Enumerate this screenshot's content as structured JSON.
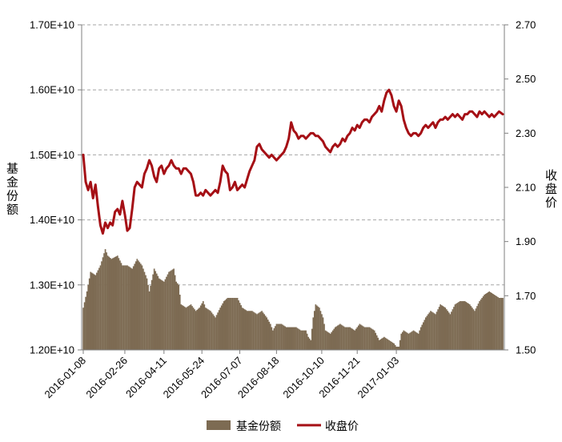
{
  "chart_data": {
    "type": "bar+line",
    "title": "",
    "y_left_label": "基金份额",
    "y_right_label": "收盘价",
    "y_left_range": [
      12000000000.0,
      17000000000.0
    ],
    "y_left_ticks": [
      "1.20E+10",
      "1.30E+10",
      "1.40E+10",
      "1.50E+10",
      "1.60E+10",
      "1.70E+10"
    ],
    "y_right_range": [
      1.5,
      2.7
    ],
    "y_right_ticks": [
      "1.50",
      "1.70",
      "1.90",
      "2.10",
      "2.30",
      "2.50",
      "2.70"
    ],
    "x_tick_labels": [
      "2016-01-08",
      "2016-02-26",
      "2016-04-11",
      "2016-05-24",
      "2016-07-07",
      "2016-08-18",
      "2016-10-10",
      "2016-11-21",
      "2017-01-03"
    ],
    "grid": "horizontal dashed",
    "legend_position": "bottom",
    "series": [
      {
        "name": "基金份额",
        "kind": "bar",
        "color": "#7d6b53",
        "knots": [
          [
            0,
            12650000000.0
          ],
          [
            3,
            12900000000.0
          ],
          [
            6,
            13200000000.0
          ],
          [
            10,
            13150000000.0
          ],
          [
            14,
            13300000000.0
          ],
          [
            18,
            13550000000.0
          ],
          [
            20,
            13450000000.0
          ],
          [
            23,
            13400000000.0
          ],
          [
            28,
            13450000000.0
          ],
          [
            32,
            13300000000.0
          ],
          [
            36,
            13300000000.0
          ],
          [
            40,
            13250000000.0
          ],
          [
            44,
            13400000000.0
          ],
          [
            48,
            13300000000.0
          ],
          [
            52,
            13100000000.0
          ],
          [
            54,
            12900000000.0
          ],
          [
            58,
            13250000000.0
          ],
          [
            62,
            13100000000.0
          ],
          [
            66,
            13050000000.0
          ],
          [
            70,
            13200000000.0
          ],
          [
            74,
            13250000000.0
          ],
          [
            76,
            13050000000.0
          ],
          [
            78,
            13000000000.0
          ],
          [
            80,
            12700000000.0
          ],
          [
            84,
            12650000000.0
          ],
          [
            88,
            12700000000.0
          ],
          [
            92,
            12600000000.0
          ],
          [
            95,
            12650000000.0
          ],
          [
            98,
            12750000000.0
          ],
          [
            100,
            12650000000.0
          ],
          [
            104,
            12600000000.0
          ],
          [
            108,
            12500000000.0
          ],
          [
            112,
            12650000000.0
          ],
          [
            115,
            12750000000.0
          ],
          [
            118,
            12800000000.0
          ],
          [
            122,
            12800000000.0
          ],
          [
            126,
            12800000000.0
          ],
          [
            130,
            12650000000.0
          ],
          [
            134,
            12600000000.0
          ],
          [
            138,
            12600000000.0
          ],
          [
            142,
            12550000000.0
          ],
          [
            146,
            12600000000.0
          ],
          [
            150,
            12500000000.0
          ],
          [
            153,
            12400000000.0
          ],
          [
            155,
            12300000000.0
          ],
          [
            158,
            12400000000.0
          ],
          [
            162,
            12400000000.0
          ],
          [
            166,
            12350000000.0
          ],
          [
            170,
            12350000000.0
          ],
          [
            174,
            12350000000.0
          ],
          [
            178,
            12300000000.0
          ],
          [
            182,
            12300000000.0
          ],
          [
            184,
            12200000000.0
          ],
          [
            186,
            12150000000.0
          ],
          [
            188,
            12500000000.0
          ],
          [
            190,
            12700000000.0
          ],
          [
            193,
            12650000000.0
          ],
          [
            196,
            12500000000.0
          ],
          [
            198,
            12300000000.0
          ],
          [
            202,
            12250000000.0
          ],
          [
            206,
            12350000000.0
          ],
          [
            210,
            12400000000.0
          ],
          [
            214,
            12350000000.0
          ],
          [
            218,
            12350000000.0
          ],
          [
            222,
            12300000000.0
          ],
          [
            226,
            12400000000.0
          ],
          [
            230,
            12350000000.0
          ],
          [
            234,
            12350000000.0
          ],
          [
            238,
            12300000000.0
          ],
          [
            242,
            12150000000.0
          ],
          [
            246,
            12200000000.0
          ],
          [
            250,
            12150000000.0
          ],
          [
            254,
            12100000000.0
          ],
          [
            256,
            12050000000.0
          ],
          [
            258,
            12050000000.0
          ],
          [
            260,
            12250000000.0
          ],
          [
            262,
            12300000000.0
          ],
          [
            266,
            12250000000.0
          ],
          [
            270,
            12300000000.0
          ],
          [
            274,
            12250000000.0
          ],
          [
            276,
            12350000000.0
          ],
          [
            280,
            12500000000.0
          ],
          [
            284,
            12600000000.0
          ],
          [
            288,
            12550000000.0
          ],
          [
            292,
            12700000000.0
          ],
          [
            296,
            12650000000.0
          ],
          [
            300,
            12550000000.0
          ],
          [
            304,
            12700000000.0
          ],
          [
            308,
            12750000000.0
          ],
          [
            312,
            12750000000.0
          ],
          [
            316,
            12700000000.0
          ],
          [
            320,
            12600000000.0
          ],
          [
            324,
            12750000000.0
          ],
          [
            328,
            12850000000.0
          ],
          [
            332,
            12900000000.0
          ],
          [
            336,
            12850000000.0
          ],
          [
            340,
            12800000000.0
          ],
          [
            343,
            12800000000.0
          ]
        ]
      },
      {
        "name": "收盘价",
        "kind": "line",
        "color": "#a50f15",
        "knots": [
          [
            0,
            2.22
          ],
          [
            2,
            2.12
          ],
          [
            4,
            2.09
          ],
          [
            6,
            2.12
          ],
          [
            8,
            2.06
          ],
          [
            10,
            2.11
          ],
          [
            12,
            2.03
          ],
          [
            14,
            1.96
          ],
          [
            16,
            1.93
          ],
          [
            18,
            1.97
          ],
          [
            20,
            1.95
          ],
          [
            22,
            1.97
          ],
          [
            24,
            1.96
          ],
          [
            26,
            2.01
          ],
          [
            28,
            2.02
          ],
          [
            30,
            2.0
          ],
          [
            32,
            2.05
          ],
          [
            34,
            2.0
          ],
          [
            36,
            1.94
          ],
          [
            38,
            1.95
          ],
          [
            40,
            2.02
          ],
          [
            42,
            2.1
          ],
          [
            44,
            2.12
          ],
          [
            46,
            2.11
          ],
          [
            48,
            2.1
          ],
          [
            50,
            2.15
          ],
          [
            52,
            2.17
          ],
          [
            54,
            2.2
          ],
          [
            56,
            2.18
          ],
          [
            58,
            2.14
          ],
          [
            60,
            2.12
          ],
          [
            62,
            2.17
          ],
          [
            64,
            2.18
          ],
          [
            66,
            2.15
          ],
          [
            68,
            2.17
          ],
          [
            70,
            2.18
          ],
          [
            72,
            2.2
          ],
          [
            74,
            2.18
          ],
          [
            76,
            2.17
          ],
          [
            78,
            2.17
          ],
          [
            80,
            2.15
          ],
          [
            82,
            2.17
          ],
          [
            84,
            2.17
          ],
          [
            86,
            2.16
          ],
          [
            88,
            2.15
          ],
          [
            90,
            2.12
          ],
          [
            92,
            2.07
          ],
          [
            94,
            2.07
          ],
          [
            96,
            2.08
          ],
          [
            98,
            2.07
          ],
          [
            100,
            2.09
          ],
          [
            102,
            2.08
          ],
          [
            104,
            2.07
          ],
          [
            106,
            2.08
          ],
          [
            108,
            2.09
          ],
          [
            110,
            2.08
          ],
          [
            112,
            2.12
          ],
          [
            114,
            2.18
          ],
          [
            116,
            2.16
          ],
          [
            118,
            2.15
          ],
          [
            120,
            2.09
          ],
          [
            122,
            2.1
          ],
          [
            124,
            2.12
          ],
          [
            126,
            2.09
          ],
          [
            128,
            2.1
          ],
          [
            130,
            2.11
          ],
          [
            132,
            2.1
          ],
          [
            134,
            2.13
          ],
          [
            136,
            2.16
          ],
          [
            138,
            2.18
          ],
          [
            140,
            2.2
          ],
          [
            142,
            2.25
          ],
          [
            144,
            2.26
          ],
          [
            146,
            2.24
          ],
          [
            148,
            2.23
          ],
          [
            150,
            2.22
          ],
          [
            152,
            2.21
          ],
          [
            154,
            2.22
          ],
          [
            156,
            2.21
          ],
          [
            158,
            2.2
          ],
          [
            160,
            2.21
          ],
          [
            162,
            2.22
          ],
          [
            164,
            2.23
          ],
          [
            166,
            2.25
          ],
          [
            168,
            2.28
          ],
          [
            170,
            2.34
          ],
          [
            172,
            2.31
          ],
          [
            174,
            2.3
          ],
          [
            176,
            2.28
          ],
          [
            178,
            2.29
          ],
          [
            180,
            2.29
          ],
          [
            182,
            2.28
          ],
          [
            184,
            2.29
          ],
          [
            186,
            2.3
          ],
          [
            188,
            2.3
          ],
          [
            190,
            2.29
          ],
          [
            192,
            2.29
          ],
          [
            194,
            2.28
          ],
          [
            196,
            2.27
          ],
          [
            198,
            2.25
          ],
          [
            200,
            2.24
          ],
          [
            202,
            2.23
          ],
          [
            204,
            2.25
          ],
          [
            206,
            2.26
          ],
          [
            208,
            2.25
          ],
          [
            210,
            2.26
          ],
          [
            212,
            2.28
          ],
          [
            214,
            2.27
          ],
          [
            216,
            2.29
          ],
          [
            218,
            2.3
          ],
          [
            220,
            2.32
          ],
          [
            222,
            2.31
          ],
          [
            224,
            2.33
          ],
          [
            226,
            2.32
          ],
          [
            228,
            2.34
          ],
          [
            230,
            2.35
          ],
          [
            232,
            2.35
          ],
          [
            234,
            2.34
          ],
          [
            236,
            2.36
          ],
          [
            238,
            2.37
          ],
          [
            240,
            2.38
          ],
          [
            242,
            2.4
          ],
          [
            244,
            2.38
          ],
          [
            246,
            2.42
          ],
          [
            248,
            2.45
          ],
          [
            250,
            2.46
          ],
          [
            252,
            2.44
          ],
          [
            254,
            2.4
          ],
          [
            256,
            2.38
          ],
          [
            258,
            2.42
          ],
          [
            260,
            2.4
          ],
          [
            262,
            2.35
          ],
          [
            264,
            2.32
          ],
          [
            266,
            2.3
          ],
          [
            268,
            2.29
          ],
          [
            270,
            2.3
          ],
          [
            272,
            2.3
          ],
          [
            274,
            2.29
          ],
          [
            276,
            2.3
          ],
          [
            278,
            2.32
          ],
          [
            280,
            2.33
          ],
          [
            282,
            2.32
          ],
          [
            284,
            2.33
          ],
          [
            286,
            2.34
          ],
          [
            288,
            2.32
          ],
          [
            290,
            2.34
          ],
          [
            292,
            2.35
          ],
          [
            294,
            2.35
          ],
          [
            296,
            2.36
          ],
          [
            298,
            2.35
          ],
          [
            300,
            2.36
          ],
          [
            302,
            2.37
          ],
          [
            304,
            2.36
          ],
          [
            306,
            2.37
          ],
          [
            308,
            2.36
          ],
          [
            310,
            2.35
          ],
          [
            312,
            2.37
          ],
          [
            314,
            2.37
          ],
          [
            316,
            2.38
          ],
          [
            318,
            2.38
          ],
          [
            320,
            2.37
          ],
          [
            322,
            2.36
          ],
          [
            324,
            2.38
          ],
          [
            326,
            2.37
          ],
          [
            328,
            2.38
          ],
          [
            330,
            2.37
          ],
          [
            332,
            2.36
          ],
          [
            334,
            2.37
          ],
          [
            336,
            2.36
          ],
          [
            338,
            2.37
          ],
          [
            340,
            2.38
          ],
          [
            343,
            2.37
          ]
        ]
      }
    ]
  }
}
